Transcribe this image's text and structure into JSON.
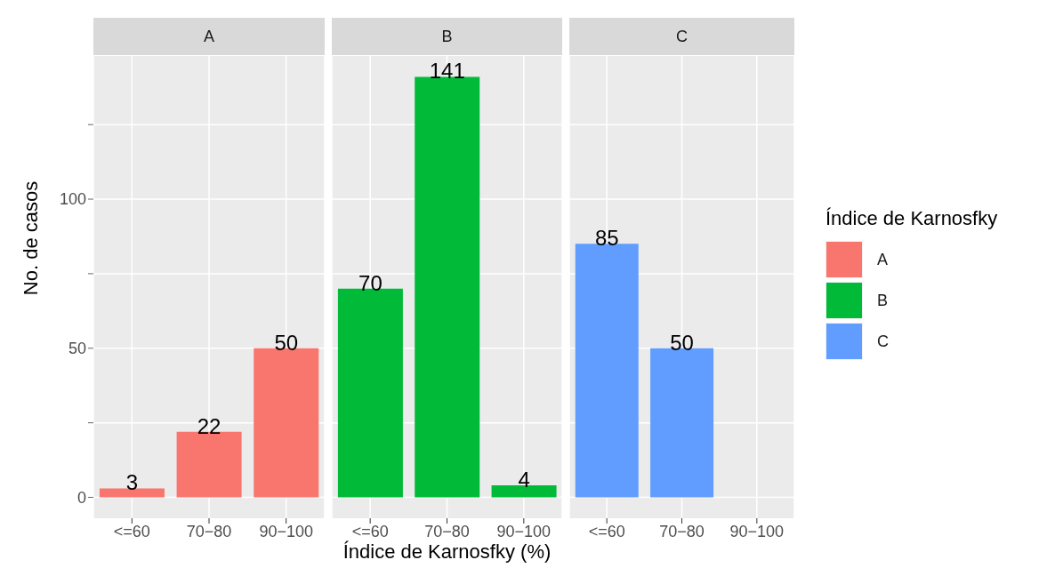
{
  "chart_data": [
    {
      "type": "bar",
      "title": "A",
      "ylabel": "No. de casos",
      "categories": [
        "<=60",
        "70−80",
        "90−100"
      ],
      "series": [
        {
          "name": "A",
          "color": "#f8766d",
          "values": [
            3,
            22,
            50
          ]
        }
      ],
      "ylim": [
        -7,
        148
      ],
      "yticks": [
        0,
        {
          "value": 25,
          "label": null
        },
        50,
        {
          "value": 75,
          "label": null
        },
        100,
        {
          "value": 125,
          "label": null
        }
      ],
      "grid": true,
      "data_labels": true
    },
    {
      "type": "bar",
      "title": "B",
      "xlabel": "Índice de Karnosfky (%)",
      "categories": [
        "<=60",
        "70−80",
        "90−100"
      ],
      "series": [
        {
          "name": "B",
          "color": "#00ba38",
          "values": [
            70,
            141,
            4
          ]
        }
      ],
      "ylim": [
        -7,
        148
      ],
      "yticks": [
        0,
        {
          "value": 25,
          "label": null
        },
        50,
        {
          "value": 75,
          "label": null
        },
        100,
        {
          "value": 125,
          "label": null
        }
      ],
      "grid": true,
      "data_labels": true,
      "tick_labels": "x"
    },
    {
      "type": "bar",
      "title": "C",
      "legend_title": "Índice de Karnosfky",
      "legend": "right",
      "categories": [
        "<=60",
        "70−80",
        "90−100"
      ],
      "series": [
        {
          "name": "C",
          "color": "#619cff",
          "values": [
            85,
            50,
            null
          ]
        }
      ],
      "ylim": [
        -7,
        148
      ],
      "yticks": [
        0,
        {
          "value": 25,
          "label": null
        },
        50,
        {
          "value": 75,
          "label": null
        },
        100,
        {
          "value": 125,
          "label": null
        }
      ],
      "grid": true,
      "data_labels": true,
      "tick_labels": "x"
    }
  ]
}
